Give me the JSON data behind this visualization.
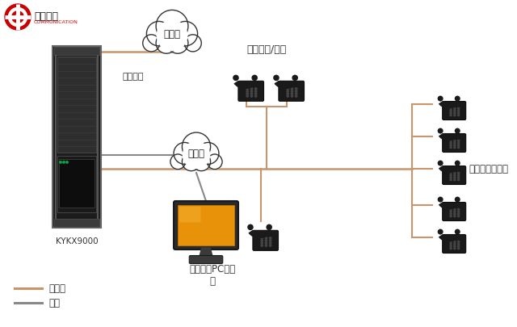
{
  "bg_color": "#ffffff",
  "line_color_phone": "#C8956A",
  "line_color_network": "#888888",
  "text_color": "#333333",
  "legend_labels": [
    "电话线",
    "网线"
  ],
  "legend_colors": [
    "#C8956A",
    "#888888"
  ],
  "server_label": "KYKX9000",
  "cloud1_label": "运营商",
  "cloud2_label": "局域网",
  "outside_label": "外线接入",
  "admin_label": "行政办公/后勤",
  "front_label": "前台电脑PC话务\n台",
  "room_label": "各楼层客房电话",
  "logo_text1": "鹿优凯欣",
  "logo_text2": "COMMUNICATION"
}
